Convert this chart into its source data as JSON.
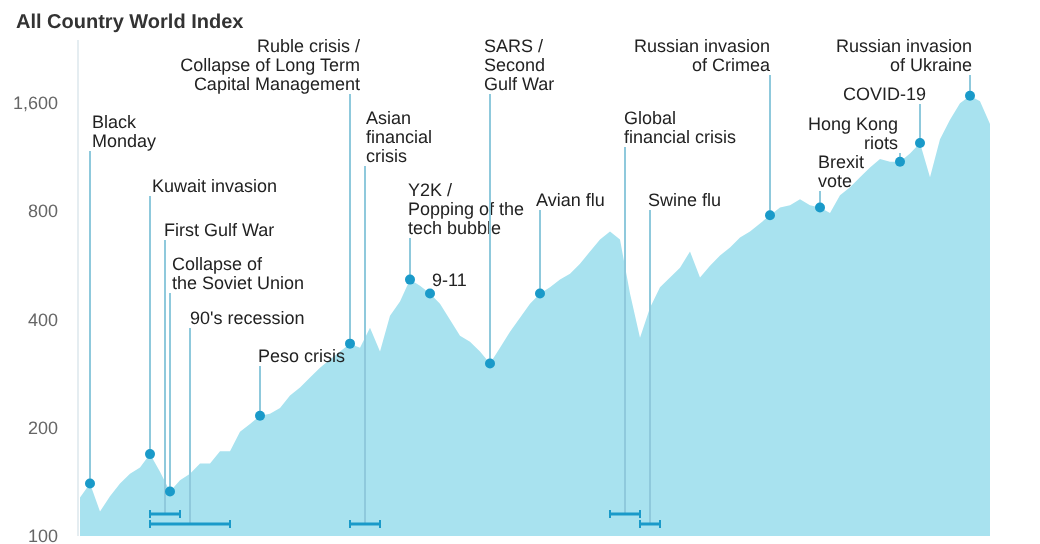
{
  "chart_data": {
    "type": "area",
    "title": "All Country World Index",
    "color": "#a8e2ef",
    "log": true,
    "tick_labels": "y",
    "ylim": [
      100,
      2400
    ],
    "yticks": [
      100,
      200,
      400,
      800,
      {
        "value": 1600,
        "label": "1,600"
      }
    ],
    "categories": [
      null,
      null,
      null,
      null,
      null,
      null,
      null,
      null,
      null,
      null,
      null,
      null,
      null,
      null,
      null,
      null,
      null,
      null,
      null,
      null,
      null,
      null,
      null,
      null,
      null,
      null,
      null,
      null,
      null,
      null,
      null,
      null,
      null,
      null,
      null,
      null,
      null,
      null,
      null,
      null,
      null,
      null,
      null,
      null,
      null,
      null,
      null,
      null,
      null,
      null,
      null,
      null,
      null,
      null,
      null,
      null,
      null,
      null,
      null,
      null,
      null,
      null,
      null,
      null,
      null,
      null,
      null,
      null,
      null,
      null,
      null,
      null,
      null,
      null,
      null,
      null,
      null,
      null,
      null,
      null,
      null,
      null,
      null,
      null,
      null,
      null,
      null,
      null,
      null,
      null,
      null,
      null
    ],
    "values": [
      128,
      140,
      117,
      129,
      140,
      149,
      155,
      169,
      151,
      133,
      143,
      149,
      159,
      159,
      172,
      172,
      195,
      205,
      216,
      219,
      227,
      246,
      259,
      276,
      294,
      310,
      326,
      343,
      334,
      380,
      326,
      410,
      449,
      517,
      497,
      473,
      443,
      400,
      361,
      347,
      326,
      302,
      334,
      370,
      405,
      443,
      473,
      492,
      517,
      537,
      572,
      619,
      668,
      704,
      668,
      473,
      356,
      432,
      492,
      524,
      558,
      619,
      524,
      565,
      603,
      635,
      677,
      704,
      741,
      781,
      821,
      833,
      865,
      833,
      821,
      792,
      888,
      934,
      996,
      1060,
      1120,
      1100,
      1100,
      1160,
      1240,
      996,
      1270,
      1440,
      1600,
      1680,
      1620,
      1400
    ],
    "annotations": [
      "Black\nMonday",
      "Kuwait invasion",
      "First Gulf War",
      "Collapse of\nthe Soviet Union",
      "90's recession",
      "Peso crisis",
      "Ruble crisis /\nCollapse of Long Term\nCapital Management",
      "Asian\nfinancial\ncrisis",
      "Y2K /\nPopping of the\ntech bubble",
      "9-11",
      "SARS /\nSecond\nGulf War",
      "Avian flu",
      "Global\nfinancial crisis",
      "Swine flu",
      "Russian invasion\nof Crimea",
      "Brexit\nvote",
      "Hong Kong\nriots",
      "COVID-19",
      "Russian invasion\nof Ukraine"
    ]
  }
}
